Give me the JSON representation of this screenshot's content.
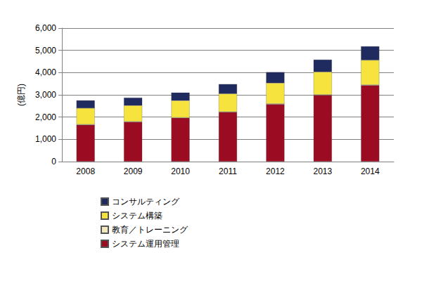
{
  "chart_data": {
    "type": "bar",
    "stacked": true,
    "grid": true,
    "legend": "bottom",
    "y_label": "(億円)",
    "categories": [
      "2008",
      "2009",
      "2010",
      "2011",
      "2012",
      "2013",
      "2014"
    ],
    "series": [
      {
        "name": "システム運用管理",
        "color": "#9b0c22",
        "values": [
          1650,
          1780,
          1960,
          2220,
          2580,
          2990,
          3430
        ]
      },
      {
        "name": "教育／トレーニング",
        "color": "#f3e7bd",
        "values": [
          20,
          20,
          20,
          20,
          20,
          20,
          20
        ]
      },
      {
        "name": "システム構築",
        "color": "#f7e33e",
        "values": [
          730,
          720,
          760,
          810,
          930,
          1020,
          1110
        ]
      },
      {
        "name": "コンサルティング",
        "color": "#1f2a5e",
        "values": [
          350,
          350,
          360,
          430,
          490,
          550,
          620
        ]
      }
    ],
    "ylim": [
      0,
      6000
    ],
    "yticks": [
      0,
      {
        "value": 1000,
        "label": "1,000"
      },
      {
        "value": 2000,
        "label": "2,000"
      },
      {
        "value": 3000,
        "label": "3,000"
      },
      {
        "value": 4000,
        "label": "4,000"
      },
      {
        "value": 5000,
        "label": "5,000"
      },
      {
        "value": 6000,
        "label": "6,000"
      }
    ]
  }
}
